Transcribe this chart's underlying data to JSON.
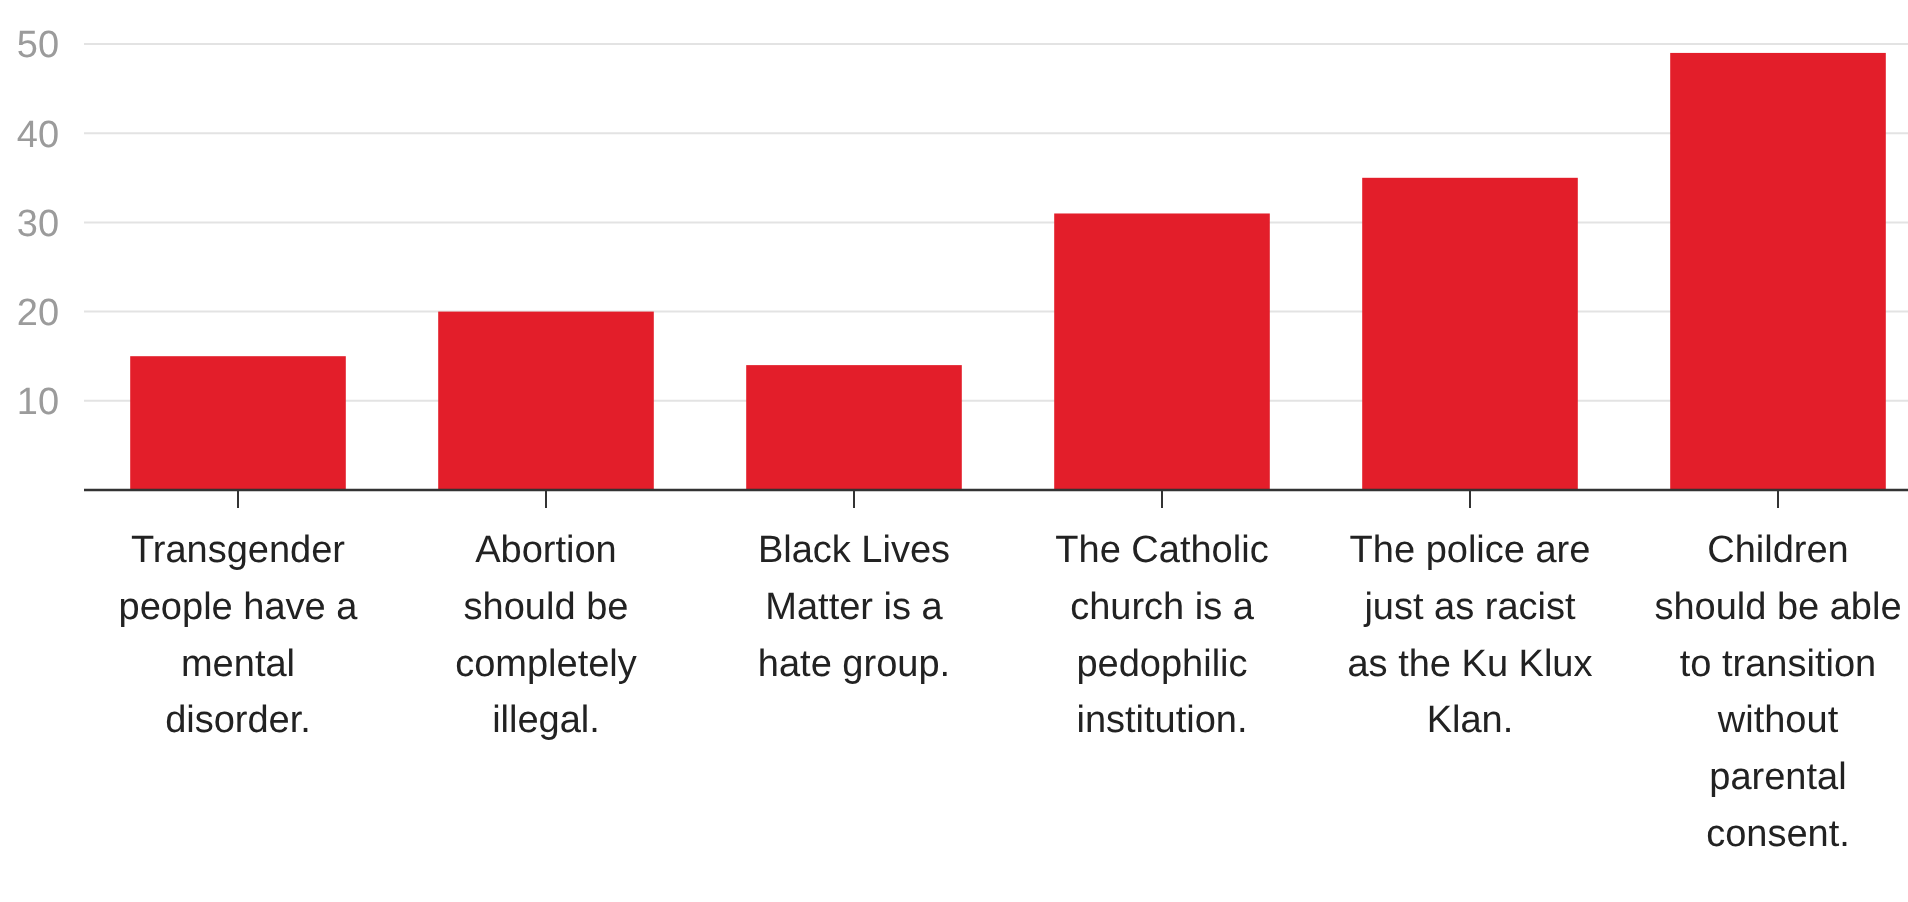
{
  "chart_data": {
    "type": "bar",
    "categories": [
      "Transgender people have a mental disorder.",
      "Abortion should be completely illegal.",
      "Black Lives Matter is a hate group.",
      "The Catholic church is a pedophilic institution.",
      "The police are just as racist as the Ku Klux Klan.",
      "Children should be able to transition without parental consent."
    ],
    "values": [
      15,
      20,
      14,
      31,
      35,
      49
    ],
    "color": "#e31e2a",
    "ylim": [
      0,
      50
    ],
    "yticks": [
      {
        "value": 0,
        "label": null
      },
      10,
      20,
      30,
      40,
      50
    ],
    "grid": "y"
  }
}
